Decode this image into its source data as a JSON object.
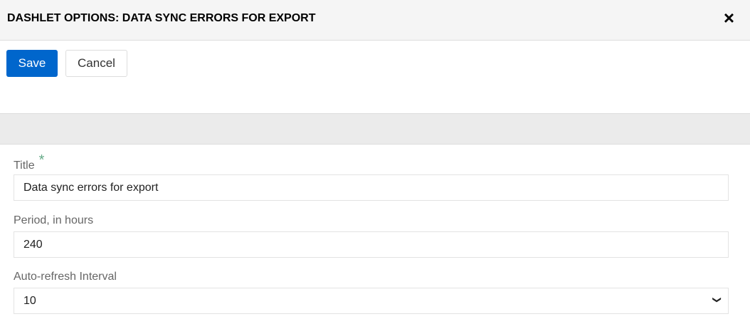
{
  "dialog": {
    "title": "DASHLET OPTIONS: DATA SYNC ERRORS FOR EXPORT",
    "close_icon": "×"
  },
  "toolbar": {
    "save_label": "Save",
    "cancel_label": "Cancel"
  },
  "form": {
    "title_label": "Title",
    "required_mark": "*",
    "title_value": "Data sync errors for export",
    "period_label": "Period, in hours",
    "period_value": "240",
    "refresh_label": "Auto-refresh Interval",
    "refresh_value": "10"
  }
}
